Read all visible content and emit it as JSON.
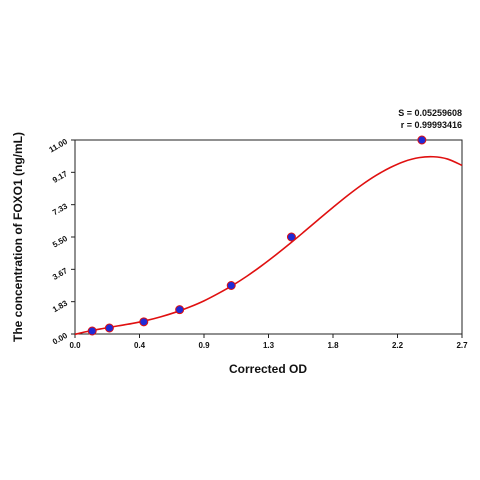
{
  "stats": {
    "s_line": "S = 0.05259608",
    "r_line": "r = 0.99993416"
  },
  "chart_data": {
    "type": "scatter",
    "xlabel": "Corrected OD",
    "ylabel": "The concentration of FOXO1 (ng/mL)",
    "xlim": [
      0.0,
      2.7
    ],
    "ylim": [
      0.0,
      11.0
    ],
    "x_ticks": [
      "0.0",
      "0.4",
      "0.9",
      "1.3",
      "1.8",
      "2.2",
      "2.7"
    ],
    "y_ticks": [
      "0.00",
      "1.83",
      "3.67",
      "5.50",
      "7.33",
      "9.17",
      "11.00"
    ],
    "grid": false,
    "point_color": "#1f2bd6",
    "curve_color": "#e01010",
    "points": [
      {
        "x": 0.12,
        "y": 0.17
      },
      {
        "x": 0.24,
        "y": 0.34
      },
      {
        "x": 0.48,
        "y": 0.69
      },
      {
        "x": 0.73,
        "y": 1.38
      },
      {
        "x": 1.09,
        "y": 2.75
      },
      {
        "x": 1.51,
        "y": 5.5
      },
      {
        "x": 2.42,
        "y": 11.0
      }
    ],
    "fit_curve": {
      "x": [
        0.0,
        0.1,
        0.2,
        0.3,
        0.4,
        0.5,
        0.6,
        0.7,
        0.8,
        0.9,
        1.0,
        1.1,
        1.2,
        1.3,
        1.4,
        1.5,
        1.6,
        1.7,
        1.8,
        1.9,
        2.0,
        2.1,
        2.2,
        2.3,
        2.4,
        2.5,
        2.6,
        2.7
      ],
      "y": [
        -0.02,
        0.17,
        0.32,
        0.46,
        0.6,
        0.77,
        0.98,
        1.23,
        1.53,
        1.88,
        2.3,
        2.76,
        3.28,
        3.86,
        4.48,
        5.13,
        5.81,
        6.5,
        7.18,
        7.84,
        8.45,
        8.99,
        9.44,
        9.79,
        10.0,
        10.05,
        9.92,
        9.56
      ]
    }
  }
}
